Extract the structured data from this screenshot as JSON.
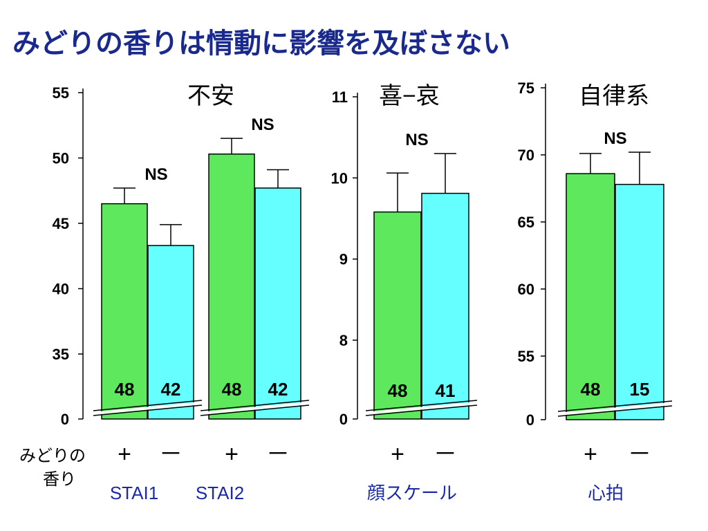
{
  "slide": {
    "title": "みどりの香りは情動に影響を及ぼさない",
    "row_label_line1": "みどりの",
    "row_label_line2": "香り"
  },
  "colors": {
    "title": "#1a2a8c",
    "green_bar": "#5ee85e",
    "cyan_bar": "#66ffff",
    "sublabel": "#1a2aa8"
  },
  "chart_data": [
    {
      "type": "bar",
      "title": "不安",
      "y_axis_break": true,
      "yticks": [
        0,
        35,
        40,
        45,
        50,
        55
      ],
      "ylim": [
        35,
        55
      ],
      "groups": [
        {
          "label": "STAI1",
          "bars": [
            {
              "condition": "+",
              "value": 46.5,
              "error": 1.2,
              "n": 48,
              "color": "green"
            },
            {
              "condition": "－",
              "value": 43.3,
              "error": 1.6,
              "n": 42,
              "color": "cyan"
            }
          ],
          "significance": "NS"
        },
        {
          "label": "STAI2",
          "bars": [
            {
              "condition": "+",
              "value": 50.3,
              "error": 1.2,
              "n": 48,
              "color": "green"
            },
            {
              "condition": "－",
              "value": 47.7,
              "error": 1.4,
              "n": 42,
              "color": "cyan"
            }
          ],
          "significance": "NS"
        }
      ]
    },
    {
      "type": "bar",
      "title": "喜−哀",
      "y_axis_break": true,
      "yticks": [
        0,
        8,
        9,
        10,
        11
      ],
      "ylim": [
        7.5,
        11
      ],
      "groups": [
        {
          "label": "顔スケール",
          "bars": [
            {
              "condition": "+",
              "value": 9.58,
              "error": 0.48,
              "n": 48,
              "color": "green"
            },
            {
              "condition": "－",
              "value": 9.81,
              "error": 0.49,
              "n": 41,
              "color": "cyan"
            }
          ],
          "significance": "NS"
        }
      ]
    },
    {
      "type": "bar",
      "title": "自律系",
      "y_axis_break": true,
      "yticks": [
        0,
        55,
        60,
        65,
        70,
        75
      ],
      "ylim": [
        50,
        75
      ],
      "groups": [
        {
          "label": "心拍",
          "bars": [
            {
              "condition": "+",
              "value": 68.6,
              "error": 1.5,
              "n": 48,
              "color": "green"
            },
            {
              "condition": "－",
              "value": 67.8,
              "error": 2.4,
              "n": 15,
              "color": "cyan"
            }
          ],
          "significance": "NS"
        }
      ]
    }
  ]
}
